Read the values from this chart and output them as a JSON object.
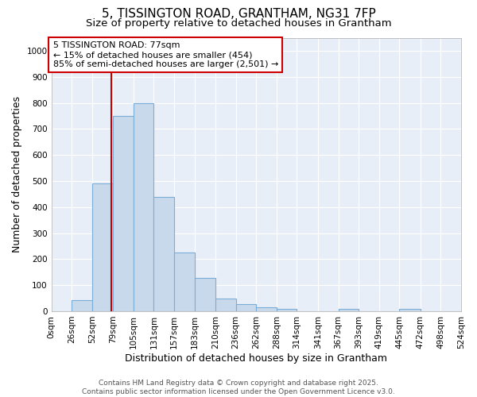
{
  "title1": "5, TISSINGTON ROAD, GRANTHAM, NG31 7FP",
  "title2": "Size of property relative to detached houses in Grantham",
  "xlabel": "Distribution of detached houses by size in Grantham",
  "ylabel": "Number of detached properties",
  "bin_edges": [
    0,
    26,
    52,
    79,
    105,
    131,
    157,
    183,
    210,
    236,
    262,
    288,
    314,
    341,
    367,
    393,
    419,
    445,
    472,
    498,
    524
  ],
  "bar_heights": [
    0,
    42,
    490,
    750,
    800,
    440,
    225,
    128,
    50,
    28,
    15,
    10,
    0,
    0,
    8,
    0,
    0,
    8,
    0,
    0
  ],
  "bar_color": "#c9d9ec",
  "bar_edge_color": "#7aaed6",
  "property_size": 77,
  "red_line_color": "#cc0000",
  "annotation_text": "5 TISSINGTON ROAD: 77sqm\n← 15% of detached houses are smaller (454)\n85% of semi-detached houses are larger (2,501) →",
  "annotation_box_color": "#ffffff",
  "annotation_box_edge": "#cc0000",
  "ylim": [
    0,
    1050
  ],
  "yticks": [
    0,
    100,
    200,
    300,
    400,
    500,
    600,
    700,
    800,
    900,
    1000
  ],
  "tick_labels": [
    "0sqm",
    "26sqm",
    "52sqm",
    "79sqm",
    "105sqm",
    "131sqm",
    "157sqm",
    "183sqm",
    "210sqm",
    "236sqm",
    "262sqm",
    "288sqm",
    "314sqm",
    "341sqm",
    "367sqm",
    "393sqm",
    "419sqm",
    "445sqm",
    "472sqm",
    "498sqm",
    "524sqm"
  ],
  "footer_text": "Contains HM Land Registry data © Crown copyright and database right 2025.\nContains public sector information licensed under the Open Government Licence v3.0.",
  "plot_bg_color": "#e8eef7",
  "fig_bg_color": "#ffffff",
  "grid_color": "#ffffff",
  "title_fontsize": 11,
  "subtitle_fontsize": 9.5,
  "axis_label_fontsize": 9,
  "tick_fontsize": 7.5,
  "annotation_fontsize": 8,
  "footer_fontsize": 6.5
}
